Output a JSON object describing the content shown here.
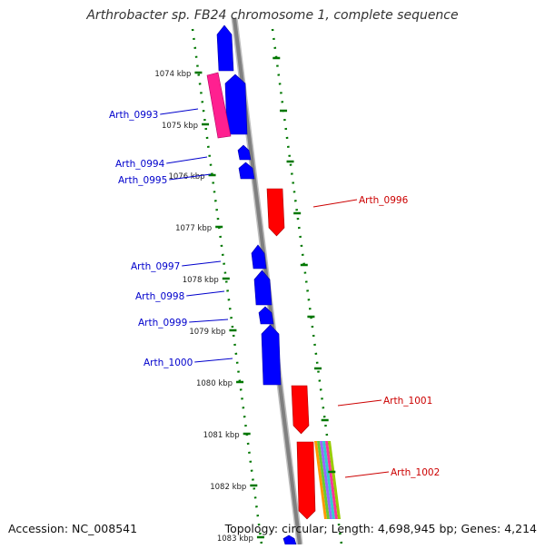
{
  "title": "Arthrobacter sp. FB24 chromosome 1, complete sequence",
  "footer": {
    "accession": "Accession: NC_008541",
    "topology": "Topology: circular; Length: 4,698,945 bp; Genes: 4,214"
  },
  "colors": {
    "forward_strand": "#0000ff",
    "reverse_strand": "#ff0000",
    "pink_feature": "#ff2090",
    "scale_ticks": "#007700",
    "backbone": "#808080",
    "label_forward": "#0000cc",
    "label_reverse": "#cc0000"
  },
  "scale": {
    "unit": "kbp",
    "ticks": [
      "1074 kbp",
      "1075 kbp",
      "1076 kbp",
      "1077 kbp",
      "1078 kbp",
      "1079 kbp",
      "1080 kbp",
      "1081 kbp",
      "1082 kbp",
      "1083 kbp"
    ]
  },
  "gene_labels": {
    "forward": [
      "Arth_0993",
      "Arth_0994",
      "Arth_0995",
      "Arth_0997",
      "Arth_0998",
      "Arth_0999",
      "Arth_1000"
    ],
    "reverse": [
      "Arth_0996",
      "Arth_1001",
      "Arth_1002"
    ]
  }
}
